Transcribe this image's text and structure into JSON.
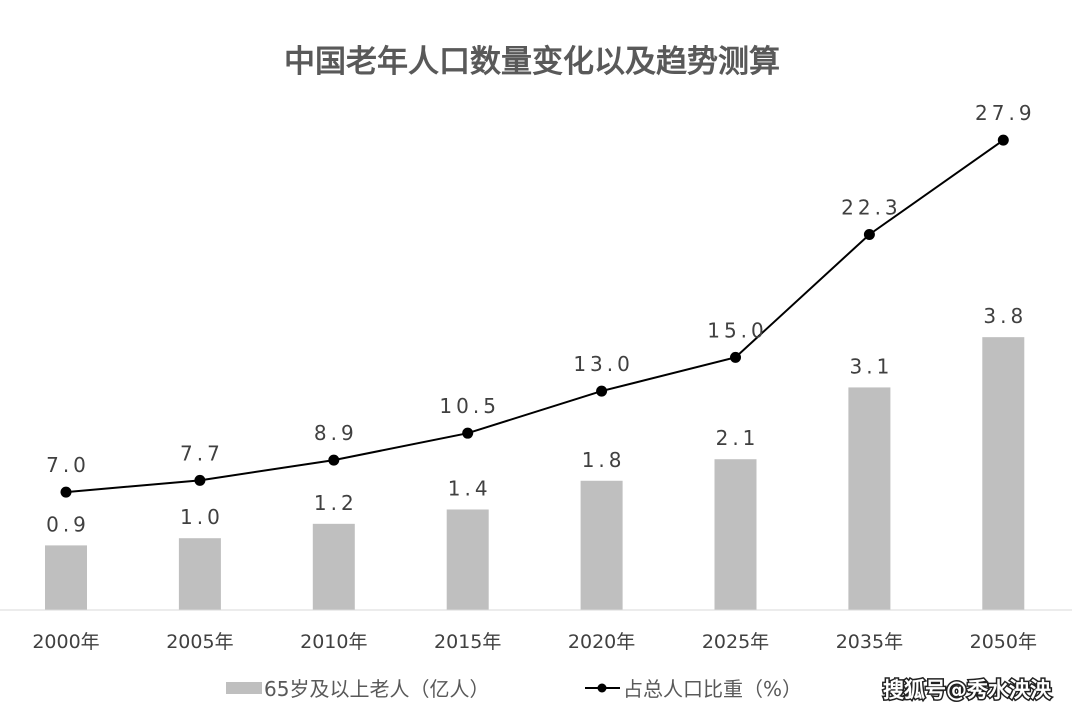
{
  "chart_data": {
    "type": "bar+line",
    "title": "中国老年人口数量变化以及趋势测算",
    "categories": [
      "2000年",
      "2005年",
      "2010年",
      "2015年",
      "2020年",
      "2025年",
      "2035年",
      "2050年"
    ],
    "series": [
      {
        "name": "65岁及以上老人（亿人）",
        "type": "bar",
        "color": "#bfbfbf",
        "values": [
          0.9,
          1.0,
          1.2,
          1.4,
          1.8,
          2.1,
          3.1,
          3.8
        ]
      },
      {
        "name": "占总人口比重（%）",
        "type": "line",
        "color": "#000000",
        "values": [
          7.0,
          7.7,
          8.9,
          10.5,
          13.0,
          15.0,
          22.3,
          27.9
        ]
      }
    ],
    "legend_position": "bottom",
    "grid": false
  },
  "watermark": "搜狐号@秀水泱泱"
}
